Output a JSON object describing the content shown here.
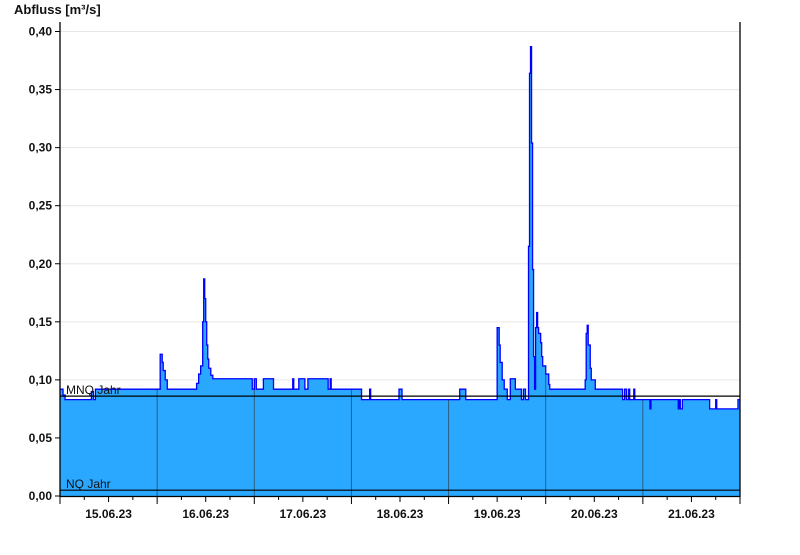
{
  "chart_data": {
    "type": "area",
    "ylabel": "Abfluss [m³/s]",
    "ylim": [
      0,
      0.4
    ],
    "yticks": [
      "0,00",
      "0,05",
      "0,10",
      "0,15",
      "0,20",
      "0,25",
      "0,30",
      "0,35",
      "0,40"
    ],
    "ytick_values": [
      0,
      0.05,
      0.1,
      0.15,
      0.2,
      0.25,
      0.3,
      0.35,
      0.4
    ],
    "xlim": [
      "15.06.23 00:00",
      "22.06.23 00:00"
    ],
    "xtick_labels": [
      "15.06.23",
      "16.06.23",
      "17.06.23",
      "18.06.23",
      "19.06.23",
      "20.06.23",
      "21.06.23"
    ],
    "grid": true,
    "colors": {
      "fill": "#2aa8ff",
      "line": "#0000ff",
      "reference": "#000000",
      "day_line": "#2b5f80",
      "grid": "#e6e6e6"
    },
    "reference_lines": [
      {
        "label": "MNQ Jahr",
        "value": 0.086
      },
      {
        "label": "NQ Jahr",
        "value": 0.005
      }
    ],
    "series": [
      {
        "step": true,
        "points": [
          [
            "15.06.23 00:00",
            0.092
          ],
          [
            "15.06.23 00:45",
            0.087
          ],
          [
            "15.06.23 01:15",
            0.083
          ],
          [
            "15.06.23 07:45",
            0.09
          ],
          [
            "15.06.23 08:15",
            0.083
          ],
          [
            "15.06.23 08:45",
            0.092
          ],
          [
            "16.06.23 00:45",
            0.122
          ],
          [
            "16.06.23 01:15",
            0.115
          ],
          [
            "16.06.23 01:30",
            0.108
          ],
          [
            "16.06.23 02:00",
            0.1
          ],
          [
            "16.06.23 02:30",
            0.092
          ],
          [
            "16.06.23 09:45",
            0.097
          ],
          [
            "16.06.23 10:15",
            0.105
          ],
          [
            "16.06.23 10:45",
            0.112
          ],
          [
            "16.06.23 11:15",
            0.15
          ],
          [
            "16.06.23 11:30",
            0.187
          ],
          [
            "16.06.23 11:45",
            0.17
          ],
          [
            "16.06.23 12:00",
            0.15
          ],
          [
            "16.06.23 12:15",
            0.13
          ],
          [
            "16.06.23 12:30",
            0.118
          ],
          [
            "16.06.23 12:45",
            0.11
          ],
          [
            "16.06.23 13:15",
            0.104
          ],
          [
            "16.06.23 13:45",
            0.101
          ],
          [
            "16.06.23 23:30",
            0.092
          ],
          [
            "17.06.23 00:00",
            0.101
          ],
          [
            "17.06.23 00:30",
            0.092
          ],
          [
            "17.06.23 02:15",
            0.101
          ],
          [
            "17.06.23 04:45",
            0.092
          ],
          [
            "17.06.23 09:30",
            0.101
          ],
          [
            "17.06.23 09:45",
            0.092
          ],
          [
            "17.06.23 11:00",
            0.101
          ],
          [
            "17.06.23 12:30",
            0.092
          ],
          [
            "17.06.23 13:15",
            0.101
          ],
          [
            "17.06.23 18:15",
            0.092
          ],
          [
            "17.06.23 18:45",
            0.101
          ],
          [
            "17.06.23 19:00",
            0.092
          ],
          [
            "18.06.23 02:30",
            0.083
          ],
          [
            "18.06.23 04:30",
            0.092
          ],
          [
            "18.06.23 04:45",
            0.083
          ],
          [
            "18.06.23 11:45",
            0.092
          ],
          [
            "18.06.23 12:30",
            0.083
          ],
          [
            "19.06.23 02:45",
            0.092
          ],
          [
            "19.06.23 04:15",
            0.083
          ],
          [
            "19.06.23 12:00",
            0.145
          ],
          [
            "19.06.23 12:30",
            0.13
          ],
          [
            "19.06.23 12:45",
            0.115
          ],
          [
            "19.06.23 13:15",
            0.1
          ],
          [
            "19.06.23 13:45",
            0.092
          ],
          [
            "19.06.23 14:30",
            0.083
          ],
          [
            "19.06.23 15:15",
            0.101
          ],
          [
            "19.06.23 16:30",
            0.092
          ],
          [
            "19.06.23 18:00",
            0.083
          ],
          [
            "19.06.23 18:30",
            0.092
          ],
          [
            "19.06.23 19:00",
            0.083
          ],
          [
            "19.06.23 19:45",
            0.215
          ],
          [
            "19.06.23 20:00",
            0.364
          ],
          [
            "19.06.23 20:15",
            0.387
          ],
          [
            "19.06.23 20:30",
            0.304
          ],
          [
            "19.06.23 20:45",
            0.195
          ],
          [
            "19.06.23 21:00",
            0.12
          ],
          [
            "19.06.23 21:15",
            0.092
          ],
          [
            "19.06.23 21:30",
            0.145
          ],
          [
            "19.06.23 21:45",
            0.158
          ],
          [
            "19.06.23 22:00",
            0.145
          ],
          [
            "19.06.23 22:15",
            0.14
          ],
          [
            "19.06.23 22:45",
            0.132
          ],
          [
            "19.06.23 23:00",
            0.12
          ],
          [
            "19.06.23 23:15",
            0.112
          ],
          [
            "20.06.23 00:00",
            0.105
          ],
          [
            "20.06.23 00:45",
            0.096
          ],
          [
            "20.06.23 01:00",
            0.092
          ],
          [
            "20.06.23 09:45",
            0.1
          ],
          [
            "20.06.23 10:00",
            0.14
          ],
          [
            "20.06.23 10:15",
            0.147
          ],
          [
            "20.06.23 10:30",
            0.13
          ],
          [
            "20.06.23 11:00",
            0.11
          ],
          [
            "20.06.23 11:15",
            0.1
          ],
          [
            "20.06.23 12:15",
            0.092
          ],
          [
            "20.06.23 19:00",
            0.083
          ],
          [
            "20.06.23 19:30",
            0.092
          ],
          [
            "20.06.23 20:00",
            0.083
          ],
          [
            "20.06.23 20:30",
            0.092
          ],
          [
            "20.06.23 20:45",
            0.083
          ],
          [
            "20.06.23 21:45",
            0.092
          ],
          [
            "20.06.23 22:00",
            0.083
          ],
          [
            "21.06.23 01:45",
            0.075
          ],
          [
            "21.06.23 02:00",
            0.083
          ],
          [
            "21.06.23 08:45",
            0.075
          ],
          [
            "21.06.23 09:00",
            0.083
          ],
          [
            "21.06.23 09:15",
            0.075
          ],
          [
            "21.06.23 09:45",
            0.083
          ],
          [
            "21.06.23 16:30",
            0.075
          ],
          [
            "21.06.23 18:00",
            0.083
          ],
          [
            "21.06.23 18:15",
            0.075
          ],
          [
            "21.06.23 23:30",
            0.083
          ],
          [
            "22.06.23 00:00",
            0.083
          ]
        ]
      }
    ]
  }
}
